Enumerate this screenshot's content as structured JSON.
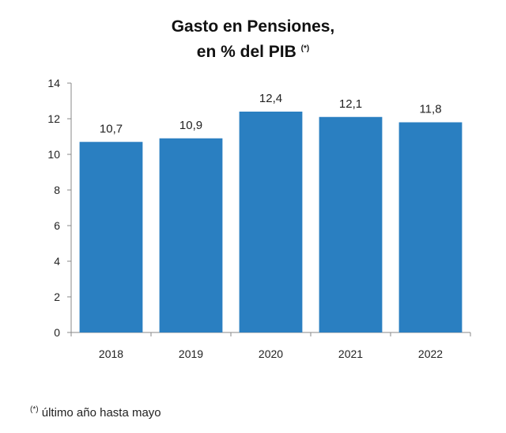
{
  "chart_data": {
    "type": "bar",
    "title": "Gasto en Pensiones,",
    "subtitle": "en % del PIB",
    "title_marker": "(*)",
    "categories": [
      "2018",
      "2019",
      "2020",
      "2021",
      "2022"
    ],
    "values": [
      10.7,
      10.9,
      12.4,
      12.1,
      11.8
    ],
    "data_labels": [
      "10,7",
      "10,9",
      "12,4",
      "12,1",
      "11,8"
    ],
    "yticks": [
      "0",
      "2",
      "4",
      "6",
      "8",
      "10",
      "12",
      "14"
    ],
    "ylim": [
      0,
      14
    ],
    "xlabel": "",
    "ylabel": "",
    "grid": false,
    "bar_color": "#2a7fc1",
    "footnote_marker": "(*)",
    "footnote": "último año hasta mayo"
  }
}
